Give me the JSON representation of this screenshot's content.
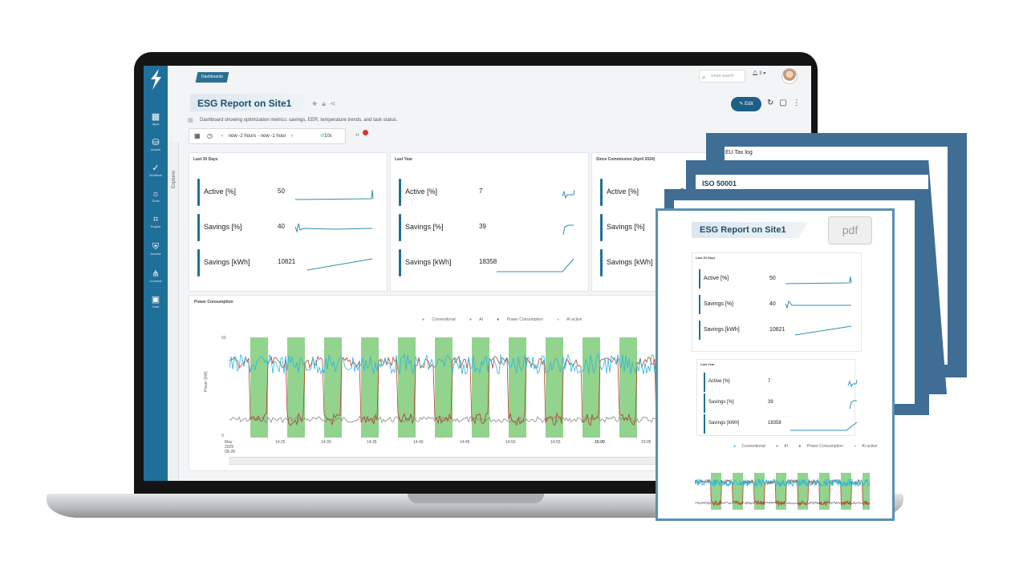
{
  "breadcrumb": "Dashboards",
  "search": {
    "placeholder": "smart search"
  },
  "notifications": {
    "count": "3"
  },
  "dashboard": {
    "title": "ESG Report on Site1",
    "description": "Dashboard showing optimization metrics: savings, EER, temperature trends, and task status.",
    "edit_label": "Edit"
  },
  "time": {
    "range": "now -2 hours - now -1 hour",
    "refresh": "10s"
  },
  "sidebar": {
    "explorer_label": "Explorer",
    "items": [
      {
        "label": "Apps",
        "icon": "grid-icon"
      },
      {
        "label": "Assets",
        "icon": "database-icon"
      },
      {
        "label": "Workflow",
        "icon": "check-circle-icon"
      },
      {
        "label": "Tools",
        "icon": "bulb-icon"
      },
      {
        "label": "Engine",
        "icon": "nodes-icon"
      },
      {
        "label": "Access",
        "icon": "shield-icon"
      },
      {
        "label": "Connect",
        "icon": "network-icon"
      },
      {
        "label": "Data",
        "icon": "box-icon"
      }
    ]
  },
  "panels": [
    {
      "title": "Last 30 Days",
      "stats": [
        {
          "label": "Active [%]",
          "value": "50"
        },
        {
          "label": "Savings [%]",
          "value": "40"
        },
        {
          "label": "Savings [kWh]",
          "value": "10821"
        }
      ]
    },
    {
      "title": "Last Year",
      "stats": [
        {
          "label": "Active [%]",
          "value": "7"
        },
        {
          "label": "Savings [%]",
          "value": "39"
        },
        {
          "label": "Savings [kWh]",
          "value": "18358"
        }
      ]
    },
    {
      "title": "Since Commission (April 2024)",
      "stats": [
        {
          "label": "Active [%]",
          "value": "5"
        },
        {
          "label": "Savings [%]",
          "value": ""
        },
        {
          "label": "Savings [kWh]",
          "value": ""
        }
      ]
    }
  ],
  "power_chart": {
    "title": "Power Consumption",
    "ylabel": "Power [kW]",
    "ytick_top": "50",
    "ytick_bottom": "0",
    "x_ticks": [
      "May 2025 09-28",
      "14:25",
      "14:30",
      "14:35",
      "14:40",
      "14:45",
      "14:50",
      "14:55",
      "15:00",
      "15:05"
    ],
    "legend": [
      "Conventional",
      "AI",
      "Power Consumption",
      "AI active"
    ],
    "colors": {
      "conventional": "#29b6e0",
      "ai": "#888888",
      "power": "#b0402a",
      "ai_active": "#92d38e"
    }
  },
  "report": {
    "back_sheet_label": "EU Tax log",
    "iso_label": "ISO 50001",
    "front_title": "ESG Report on Site1",
    "pdf_label": "pdf",
    "panels": [
      {
        "title": "Last 30 Days",
        "stats": [
          {
            "label": "Active [%]",
            "value": "50"
          },
          {
            "label": "Savings [%]",
            "value": "40"
          },
          {
            "label": "Savings [kWh]",
            "value": "10821"
          }
        ]
      },
      {
        "title": "Last Year",
        "stats": [
          {
            "label": "Active [%]",
            "value": "7"
          },
          {
            "label": "Savings [%]",
            "value": "39"
          },
          {
            "label": "Savings [kWh]",
            "value": "18358"
          }
        ]
      }
    ],
    "legend": [
      "Conventional",
      "AI",
      "Power Consumption",
      "AI active"
    ]
  }
}
